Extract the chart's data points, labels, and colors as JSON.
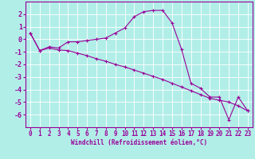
{
  "xlabel": "Windchill (Refroidissement éolien,°C)",
  "x_values": [
    0,
    1,
    2,
    3,
    4,
    5,
    6,
    7,
    8,
    9,
    10,
    11,
    12,
    13,
    14,
    15,
    16,
    17,
    18,
    19,
    20,
    21,
    22,
    23
  ],
  "line1_y": [
    0.5,
    -0.9,
    -0.6,
    -0.7,
    -0.2,
    -0.2,
    -0.1,
    0.0,
    0.1,
    0.5,
    0.9,
    1.8,
    2.2,
    2.3,
    2.3,
    1.3,
    -0.8,
    -3.5,
    -3.9,
    -4.6,
    -4.6,
    -6.4,
    -4.6,
    -5.7
  ],
  "line2_y": [
    0.5,
    -0.9,
    -0.7,
    -0.85,
    -0.9,
    -1.1,
    -1.3,
    -1.55,
    -1.75,
    -2.0,
    -2.2,
    -2.45,
    -2.7,
    -2.95,
    -3.2,
    -3.5,
    -3.8,
    -4.1,
    -4.4,
    -4.7,
    -4.85,
    -5.0,
    -5.3,
    -5.7
  ],
  "line_color": "#990099",
  "bg_color": "#b2eee8",
  "plot_bg": "#b2eee8",
  "grid_color": "#ffffff",
  "ylim": [
    -7,
    3
  ],
  "xlim": [
    -0.5,
    23.5
  ],
  "yticks": [
    -6,
    -5,
    -4,
    -3,
    -2,
    -1,
    0,
    1,
    2
  ],
  "xticks": [
    0,
    1,
    2,
    3,
    4,
    5,
    6,
    7,
    8,
    9,
    10,
    11,
    12,
    13,
    14,
    15,
    16,
    17,
    18,
    19,
    20,
    21,
    22,
    23
  ],
  "tick_fontsize": 5.5,
  "xlabel_fontsize": 5.5,
  "ylabel_fontsize": 6.0
}
